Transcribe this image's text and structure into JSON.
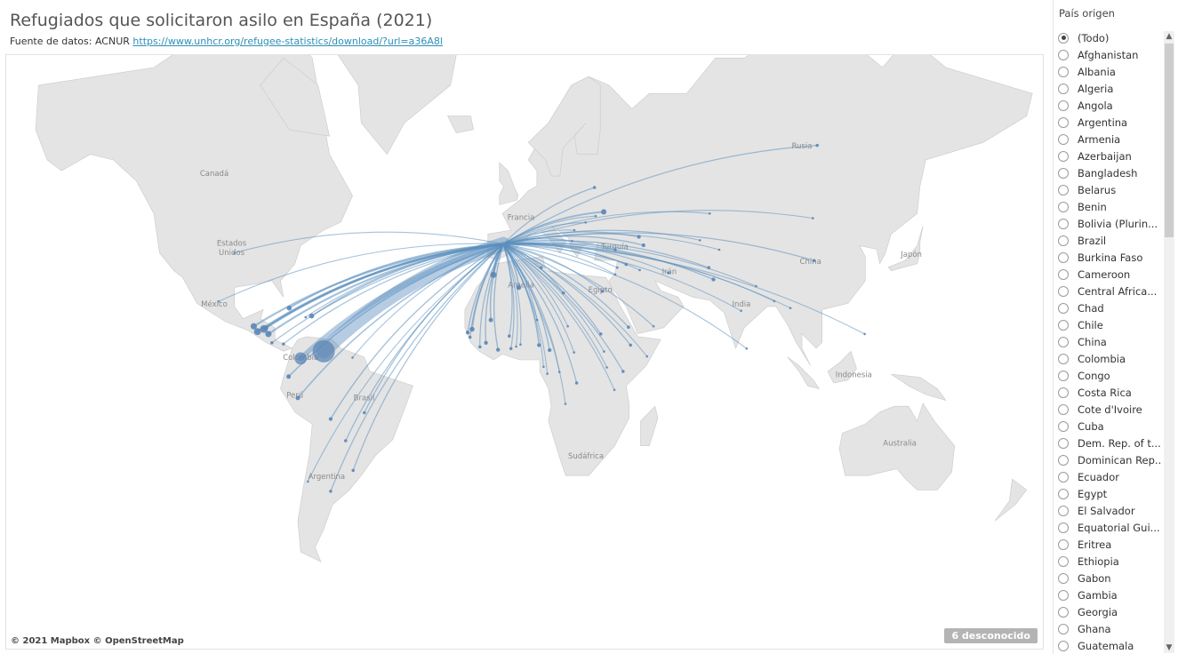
{
  "title": "Refugiados que solicitaron asilo en España (2021)",
  "subtitle": {
    "prefix": "Fuente de datos: ACNUR ",
    "link": "https://www.unhcr.org/refugee-statistics/download/?url=a36A8l"
  },
  "map": {
    "attribution": "© 2021 Mapbox © OpenStreetMap",
    "unknown_badge": "6 desconocido",
    "land_color": "#e4e4e4",
    "flow_color": "#5b8fbe",
    "labels": [
      {
        "text": "Canadá",
        "lat": 56,
        "lon": -104
      },
      {
        "text": "Estados",
        "lat": 40,
        "lon": -98
      },
      {
        "text": "Unidos",
        "lat": 37.5,
        "lon": -98
      },
      {
        "text": "México",
        "lat": 22,
        "lon": -104
      },
      {
        "text": "Colombia",
        "lat": 4,
        "lon": -74
      },
      {
        "text": "Perú",
        "lat": -9,
        "lon": -76
      },
      {
        "text": "Brasil",
        "lat": -10,
        "lon": -52
      },
      {
        "text": "Argentina",
        "lat": -35,
        "lon": -65
      },
      {
        "text": "Francia",
        "lat": 46.5,
        "lon": 2.5
      },
      {
        "text": "Turquía",
        "lat": 39,
        "lon": 35
      },
      {
        "text": "Argelia",
        "lat": 28,
        "lon": 2.5
      },
      {
        "text": "Egipto",
        "lat": 26.5,
        "lon": 30
      },
      {
        "text": "Irán",
        "lat": 32,
        "lon": 54
      },
      {
        "text": "India",
        "lat": 22,
        "lon": 79
      },
      {
        "text": "China",
        "lat": 35,
        "lon": 103
      },
      {
        "text": "Japón",
        "lat": 37,
        "lon": 138
      },
      {
        "text": "Rusia",
        "lat": 61,
        "lon": 100
      },
      {
        "text": "Indonesia",
        "lat": -2,
        "lon": 118
      },
      {
        "text": "Sudáfrica",
        "lat": -29,
        "lon": 25
      },
      {
        "text": "Australia",
        "lat": -25,
        "lon": 134
      }
    ],
    "destination": {
      "lat": 40.4,
      "lon": -3.7
    },
    "flows": [
      {
        "lat": 7.0,
        "lon": -66.0,
        "value": 100
      },
      {
        "lat": 4.5,
        "lon": -74.0,
        "value": 30
      },
      {
        "lat": 14.6,
        "lon": -86.8,
        "value": 12
      },
      {
        "lat": 13.7,
        "lon": -89.0,
        "value": 10
      },
      {
        "lat": 15.5,
        "lon": -90.3,
        "value": 8
      },
      {
        "lat": 12.9,
        "lon": -85.2,
        "value": 8
      },
      {
        "lat": 18.9,
        "lon": -70.2,
        "value": 5
      },
      {
        "lat": 21.5,
        "lon": -78.0,
        "value": 5
      },
      {
        "lat": 15.0,
        "lon": -86.0,
        "value": 4
      },
      {
        "lat": 9.5,
        "lon": -80.0,
        "value": 2
      },
      {
        "lat": 9.9,
        "lon": -84.0,
        "value": 2
      },
      {
        "lat": -1.8,
        "lon": -78.2,
        "value": 4
      },
      {
        "lat": -9.2,
        "lon": -75.0,
        "value": 4
      },
      {
        "lat": -16.3,
        "lon": -63.6,
        "value": 3
      },
      {
        "lat": -23.4,
        "lon": -58.4,
        "value": 2
      },
      {
        "lat": -32.5,
        "lon": -55.8,
        "value": 2
      },
      {
        "lat": -38.4,
        "lon": -63.6,
        "value": 2
      },
      {
        "lat": -14.2,
        "lon": -51.9,
        "value": 2
      },
      {
        "lat": -35.7,
        "lon": -71.5,
        "value": 1
      },
      {
        "lat": 4.8,
        "lon": -56.0,
        "value": 1
      },
      {
        "lat": 18.5,
        "lon": -72.3,
        "value": 1
      },
      {
        "lat": 23.6,
        "lon": -102.5,
        "value": 1
      },
      {
        "lat": 38.0,
        "lon": -97.0,
        "value": 1
      },
      {
        "lat": 31.8,
        "lon": -7.1,
        "value": 8
      },
      {
        "lat": 28.0,
        "lon": 1.7,
        "value": 5
      },
      {
        "lat": 17.6,
        "lon": -8.0,
        "value": 4
      },
      {
        "lat": 14.5,
        "lon": -14.5,
        "value": 5
      },
      {
        "lat": 13.4,
        "lon": -16.0,
        "value": 3
      },
      {
        "lat": 11.8,
        "lon": -15.2,
        "value": 2
      },
      {
        "lat": 9.9,
        "lon": -9.7,
        "value": 3
      },
      {
        "lat": 8.5,
        "lon": -11.8,
        "value": 2
      },
      {
        "lat": 7.5,
        "lon": -5.5,
        "value": 3
      },
      {
        "lat": 7.9,
        "lon": -1.0,
        "value": 2
      },
      {
        "lat": 12.2,
        "lon": -1.6,
        "value": 2
      },
      {
        "lat": 9.3,
        "lon": 2.3,
        "value": 1
      },
      {
        "lat": 8.6,
        "lon": 0.8,
        "value": 1
      },
      {
        "lat": 9.1,
        "lon": 8.7,
        "value": 3
      },
      {
        "lat": 7.4,
        "lon": 12.4,
        "value": 3
      },
      {
        "lat": 17.6,
        "lon": 8.1,
        "value": 1
      },
      {
        "lat": 15.5,
        "lon": 18.7,
        "value": 1
      },
      {
        "lat": 6.6,
        "lon": 20.9,
        "value": 1
      },
      {
        "lat": 1.6,
        "lon": 10.3,
        "value": 1
      },
      {
        "lat": -0.8,
        "lon": 11.6,
        "value": 1
      },
      {
        "lat": -0.2,
        "lon": 15.8,
        "value": 1
      },
      {
        "lat": -4.0,
        "lon": 21.8,
        "value": 2
      },
      {
        "lat": -11.2,
        "lon": 17.9,
        "value": 1
      },
      {
        "lat": 26.3,
        "lon": 17.2,
        "value": 2
      },
      {
        "lat": 33.9,
        "lon": 9.5,
        "value": 2
      },
      {
        "lat": 26.8,
        "lon": 30.8,
        "value": 2
      },
      {
        "lat": 12.9,
        "lon": 30.2,
        "value": 2
      },
      {
        "lat": 15.2,
        "lon": 39.8,
        "value": 2
      },
      {
        "lat": 9.1,
        "lon": 40.5,
        "value": 2
      },
      {
        "lat": 5.2,
        "lon": 46.2,
        "value": 1
      },
      {
        "lat": 0.0,
        "lon": 37.9,
        "value": 2
      },
      {
        "lat": 1.4,
        "lon": 32.3,
        "value": 1
      },
      {
        "lat": 6.9,
        "lon": 31.3,
        "value": 1
      },
      {
        "lat": -6.4,
        "lon": 34.9,
        "value": 1
      },
      {
        "lat": 40.1,
        "lon": 45.0,
        "value": 3
      },
      {
        "lat": 42.3,
        "lon": 43.4,
        "value": 3
      },
      {
        "lat": 48.4,
        "lon": 31.2,
        "value": 6
      },
      {
        "lat": 53.7,
        "lon": 28.0,
        "value": 2
      },
      {
        "lat": 61.5,
        "lon": 105.3,
        "value": 2
      },
      {
        "lat": 38.9,
        "lon": 35.2,
        "value": 2
      },
      {
        "lat": 34.8,
        "lon": 39.0,
        "value": 2
      },
      {
        "lat": 33.2,
        "lon": 43.7,
        "value": 1
      },
      {
        "lat": 31.9,
        "lon": 35.2,
        "value": 1
      },
      {
        "lat": 33.9,
        "lon": 35.9,
        "value": 1
      },
      {
        "lat": 32.4,
        "lon": 53.7,
        "value": 2
      },
      {
        "lat": 33.9,
        "lon": 67.7,
        "value": 2
      },
      {
        "lat": 30.4,
        "lon": 69.3,
        "value": 3
      },
      {
        "lat": 20.6,
        "lon": 78.9,
        "value": 1
      },
      {
        "lat": 23.7,
        "lon": 90.4,
        "value": 1
      },
      {
        "lat": 7.9,
        "lon": 80.8,
        "value": 1
      },
      {
        "lat": 28.4,
        "lon": 84.1,
        "value": 1
      },
      {
        "lat": 35.9,
        "lon": 104.2,
        "value": 2
      },
      {
        "lat": 12.9,
        "lon": 121.8,
        "value": 1
      },
      {
        "lat": 41.4,
        "lon": 64.6,
        "value": 1
      },
      {
        "lat": 48.0,
        "lon": 68.0,
        "value": 1
      },
      {
        "lat": 38.9,
        "lon": 71.3,
        "value": 1
      },
      {
        "lat": 15.5,
        "lon": 48.5,
        "value": 1
      },
      {
        "lat": 21.5,
        "lon": 96.0,
        "value": 1
      },
      {
        "lat": 46.9,
        "lon": 103.8,
        "value": 1
      },
      {
        "lat": 44.0,
        "lon": 21.0,
        "value": 1
      },
      {
        "lat": 41.2,
        "lon": 20.2,
        "value": 1
      },
      {
        "lat": 45.9,
        "lon": 24.9,
        "value": 1
      },
      {
        "lat": 47.4,
        "lon": 28.4,
        "value": 1
      }
    ]
  },
  "filter": {
    "title": "País origen",
    "items": [
      {
        "label": "(Todo)",
        "selected": true
      },
      {
        "label": "Afghanistan",
        "selected": false
      },
      {
        "label": "Albania",
        "selected": false
      },
      {
        "label": "Algeria",
        "selected": false
      },
      {
        "label": "Angola",
        "selected": false
      },
      {
        "label": "Argentina",
        "selected": false
      },
      {
        "label": "Armenia",
        "selected": false
      },
      {
        "label": "Azerbaijan",
        "selected": false
      },
      {
        "label": "Bangladesh",
        "selected": false
      },
      {
        "label": "Belarus",
        "selected": false
      },
      {
        "label": "Benin",
        "selected": false
      },
      {
        "label": "Bolivia (Plurin...",
        "selected": false
      },
      {
        "label": "Brazil",
        "selected": false
      },
      {
        "label": "Burkina Faso",
        "selected": false
      },
      {
        "label": "Cameroon",
        "selected": false
      },
      {
        "label": "Central Africa...",
        "selected": false
      },
      {
        "label": "Chad",
        "selected": false
      },
      {
        "label": "Chile",
        "selected": false
      },
      {
        "label": "China",
        "selected": false
      },
      {
        "label": "Colombia",
        "selected": false
      },
      {
        "label": "Congo",
        "selected": false
      },
      {
        "label": "Costa Rica",
        "selected": false
      },
      {
        "label": "Cote d'Ivoire",
        "selected": false
      },
      {
        "label": "Cuba",
        "selected": false
      },
      {
        "label": "Dem. Rep. of t...",
        "selected": false
      },
      {
        "label": "Dominican Rep...",
        "selected": false
      },
      {
        "label": "Ecuador",
        "selected": false
      },
      {
        "label": "Egypt",
        "selected": false
      },
      {
        "label": "El Salvador",
        "selected": false
      },
      {
        "label": "Equatorial Gui...",
        "selected": false
      },
      {
        "label": "Eritrea",
        "selected": false
      },
      {
        "label": "Ethiopia",
        "selected": false
      },
      {
        "label": "Gabon",
        "selected": false
      },
      {
        "label": "Gambia",
        "selected": false
      },
      {
        "label": "Georgia",
        "selected": false
      },
      {
        "label": "Ghana",
        "selected": false
      },
      {
        "label": "Guatemala",
        "selected": false
      }
    ],
    "scroll_up_icon": "chevron-up-icon",
    "scroll_down_icon": "chevron-down-icon"
  }
}
